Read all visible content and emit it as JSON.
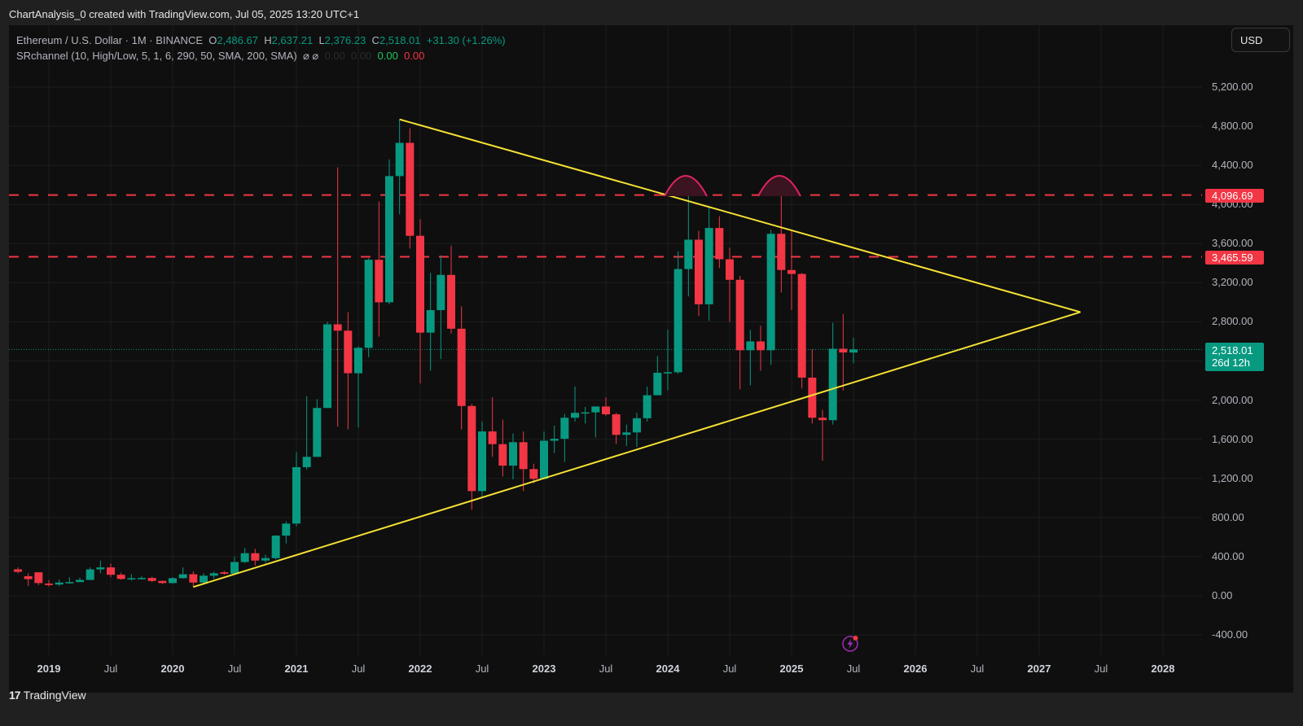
{
  "caption": "ChartAnalysis_0 created with TradingView.com, Jul 05, 2025 13:20 UTC+1",
  "legend": {
    "symbol": "Ethereum / U.S. Dollar · 1M · BINANCE",
    "o_label": "O",
    "o_value": "2,486.67",
    "h_label": "H",
    "h_value": "2,637.21",
    "l_label": "L",
    "l_value": "2,376.23",
    "c_label": "C",
    "c_value": "2,518.01",
    "change": "+31.30 (+1.26%)",
    "indicator": "SRchannel (10, High/Low, 5, 1, 6, 290, 50, SMA, 200, SMA)",
    "indicator_icons": "⌀ ⌀",
    "indicator_v1": "0.00",
    "indicator_v2": "0.00",
    "indicator_v3": "0.00",
    "indicator_v4": "0.00"
  },
  "currency_button": "USD",
  "price_badges": {
    "resistance_high": "4,096.69",
    "resistance_low": "3,465.59",
    "last_price": "2,518.01",
    "countdown": "26d 12h"
  },
  "footer": {
    "logo": "17",
    "brand": "TradingView"
  },
  "colors": {
    "up": "#089981",
    "down": "#f23645",
    "trendline": "#f5e134",
    "level": "#f23645",
    "arc": "#e0245e",
    "background": "#0f0f0f"
  },
  "chart_data": {
    "type": "candlestick",
    "title": "Ethereum / U.S. Dollar · 1M · BINANCE",
    "interval": "1M",
    "xlabel": "",
    "ylabel": "USD",
    "ylim": [
      -400,
      5600
    ],
    "y_ticks": [
      "5,200.00",
      "4,800.00",
      "4,400.00",
      "4,000.00",
      "3,600.00",
      "3,200.00",
      "2,800.00",
      "2,400.00",
      "2,000.00",
      "1,600.00",
      "1,200.00",
      "800.00",
      "400.00",
      "0.00",
      "-400.00"
    ],
    "x_ticks": [
      {
        "label": "2019",
        "year": true
      },
      {
        "label": "Jul",
        "year": false
      },
      {
        "label": "2020",
        "year": true
      },
      {
        "label": "Jul",
        "year": false
      },
      {
        "label": "2021",
        "year": true
      },
      {
        "label": "Jul",
        "year": false
      },
      {
        "label": "2022",
        "year": true
      },
      {
        "label": "Jul",
        "year": false
      },
      {
        "label": "2023",
        "year": true
      },
      {
        "label": "Jul",
        "year": false
      },
      {
        "label": "2024",
        "year": true
      },
      {
        "label": "Jul",
        "year": false
      },
      {
        "label": "2025",
        "year": true
      },
      {
        "label": "Jul",
        "year": false
      },
      {
        "label": "2026",
        "year": true
      },
      {
        "label": "Jul",
        "year": false
      },
      {
        "label": "2027",
        "year": true
      },
      {
        "label": "Jul",
        "year": false
      },
      {
        "label": "2028",
        "year": true
      }
    ],
    "grid": true,
    "horizontal_levels": [
      4096.69,
      3465.59
    ],
    "last_price": 2518.01,
    "trendlines": [
      {
        "name": "descending resistance",
        "from": [
          "2021-11",
          4870
        ],
        "to": [
          "2027-05",
          2900
        ]
      },
      {
        "name": "ascending support",
        "from": [
          "2020-03",
          90
        ],
        "to": [
          "2027-05",
          2900
        ]
      }
    ],
    "annotations": [
      "double top arcs at ~4,096.69 (Mar 2024, Dec 2024)"
    ],
    "candles": [
      [
        "2018-10",
        270,
        290,
        230,
        245
      ],
      [
        "2018-11",
        200,
        230,
        100,
        170
      ],
      [
        "2018-12",
        240,
        215,
        110,
        130
      ],
      [
        "2019-01",
        125,
        160,
        95,
        110
      ],
      [
        "2019-02",
        115,
        165,
        100,
        135
      ],
      [
        "2019-03",
        135,
        190,
        125,
        140
      ],
      [
        "2019-04",
        140,
        185,
        150,
        162
      ],
      [
        "2019-05",
        162,
        290,
        160,
        270
      ],
      [
        "2019-06",
        270,
        360,
        230,
        290
      ],
      [
        "2019-07",
        290,
        330,
        190,
        215
      ],
      [
        "2019-08",
        215,
        235,
        165,
        172
      ],
      [
        "2019-09",
        172,
        220,
        155,
        180
      ],
      [
        "2019-10",
        180,
        200,
        165,
        182
      ],
      [
        "2019-11",
        182,
        195,
        140,
        152
      ],
      [
        "2019-12",
        152,
        155,
        120,
        130
      ],
      [
        "2020-01",
        130,
        190,
        125,
        180
      ],
      [
        "2020-02",
        180,
        290,
        175,
        220
      ],
      [
        "2020-03",
        220,
        250,
        90,
        135
      ],
      [
        "2020-04",
        135,
        230,
        115,
        205
      ],
      [
        "2020-05",
        205,
        245,
        175,
        230
      ],
      [
        "2020-06",
        240,
        255,
        215,
        225
      ],
      [
        "2020-07",
        225,
        400,
        225,
        345
      ],
      [
        "2020-08",
        345,
        490,
        335,
        435
      ],
      [
        "2020-09",
        435,
        480,
        310,
        360
      ],
      [
        "2020-10",
        360,
        420,
        335,
        385
      ],
      [
        "2020-11",
        385,
        620,
        370,
        615
      ],
      [
        "2020-12",
        615,
        760,
        535,
        738
      ],
      [
        "2021-01",
        738,
        1470,
        710,
        1315
      ],
      [
        "2021-02",
        1315,
        2040,
        1290,
        1420
      ],
      [
        "2021-03",
        1420,
        2010,
        1540,
        1920
      ],
      [
        "2021-04",
        1920,
        2800,
        1920,
        2775
      ],
      [
        "2021-05",
        2775,
        4380,
        1730,
        2710
      ],
      [
        "2021-06",
        2710,
        2900,
        1700,
        2275
      ],
      [
        "2021-07",
        2275,
        2550,
        1720,
        2535
      ],
      [
        "2021-08",
        2535,
        3450,
        2440,
        3435
      ],
      [
        "2021-09",
        3435,
        4030,
        2650,
        3000
      ],
      [
        "2021-10",
        3000,
        4460,
        2980,
        4290
      ],
      [
        "2021-11",
        4290,
        4870,
        3900,
        4630
      ],
      [
        "2021-12",
        4630,
        4780,
        3550,
        3680
      ],
      [
        "2022-01",
        3680,
        3850,
        2170,
        2690
      ],
      [
        "2022-02",
        2690,
        3300,
        2300,
        2920
      ],
      [
        "2022-03",
        2920,
        3480,
        2420,
        3280
      ],
      [
        "2022-04",
        3280,
        3580,
        2680,
        2730
      ],
      [
        "2022-05",
        2730,
        2960,
        1700,
        1940
      ],
      [
        "2022-06",
        1940,
        1960,
        880,
        1070
      ],
      [
        "2022-07",
        1070,
        1780,
        1000,
        1680
      ],
      [
        "2022-08",
        1680,
        2030,
        1420,
        1550
      ],
      [
        "2022-09",
        1550,
        1800,
        1220,
        1330
      ],
      [
        "2022-10",
        1330,
        1660,
        1190,
        1570
      ],
      [
        "2022-11",
        1570,
        1680,
        1070,
        1295
      ],
      [
        "2022-12",
        1295,
        1350,
        1150,
        1195
      ],
      [
        "2023-01",
        1195,
        1680,
        1190,
        1585
      ],
      [
        "2023-02",
        1585,
        1740,
        1460,
        1605
      ],
      [
        "2023-03",
        1605,
        1860,
        1370,
        1820
      ],
      [
        "2023-04",
        1820,
        2140,
        1780,
        1870
      ],
      [
        "2023-05",
        1870,
        1930,
        1760,
        1875
      ],
      [
        "2023-06",
        1875,
        1930,
        1620,
        1935
      ],
      [
        "2023-07",
        1935,
        2030,
        1840,
        1855
      ],
      [
        "2023-08",
        1855,
        1870,
        1550,
        1645
      ],
      [
        "2023-09",
        1645,
        1750,
        1530,
        1670
      ],
      [
        "2023-10",
        1670,
        1870,
        1520,
        1815
      ],
      [
        "2023-11",
        1815,
        2140,
        1780,
        2050
      ],
      [
        "2023-12",
        2050,
        2450,
        2050,
        2280
      ],
      [
        "2024-01",
        2280,
        2720,
        2100,
        2285
      ],
      [
        "2024-02",
        2285,
        3520,
        2270,
        3340
      ],
      [
        "2024-03",
        3340,
        4095,
        3060,
        3640
      ],
      [
        "2024-04",
        3640,
        3730,
        2860,
        2980
      ],
      [
        "2024-05",
        2980,
        3980,
        2810,
        3760
      ],
      [
        "2024-06",
        3760,
        3880,
        3350,
        3440
      ],
      [
        "2024-07",
        3440,
        3560,
        2800,
        3230
      ],
      [
        "2024-08",
        3230,
        3270,
        2110,
        2510
      ],
      [
        "2024-09",
        2510,
        2720,
        2150,
        2600
      ],
      [
        "2024-10",
        2600,
        2760,
        2300,
        2510
      ],
      [
        "2024-11",
        2510,
        3740,
        2360,
        3700
      ],
      [
        "2024-12",
        3700,
        4096,
        3100,
        3330
      ],
      [
        "2025-01",
        3330,
        3740,
        2920,
        3290
      ],
      [
        "2025-02",
        3290,
        3300,
        2120,
        2230
      ],
      [
        "2025-03",
        2230,
        2520,
        1760,
        1820
      ],
      [
        "2025-04",
        1820,
        1900,
        1380,
        1795
      ],
      [
        "2025-05",
        1795,
        2790,
        1750,
        2525
      ],
      [
        "2025-06",
        2525,
        2880,
        2100,
        2487
      ],
      [
        "2025-07",
        2486.67,
        2637.21,
        2376.23,
        2518.01
      ]
    ]
  }
}
